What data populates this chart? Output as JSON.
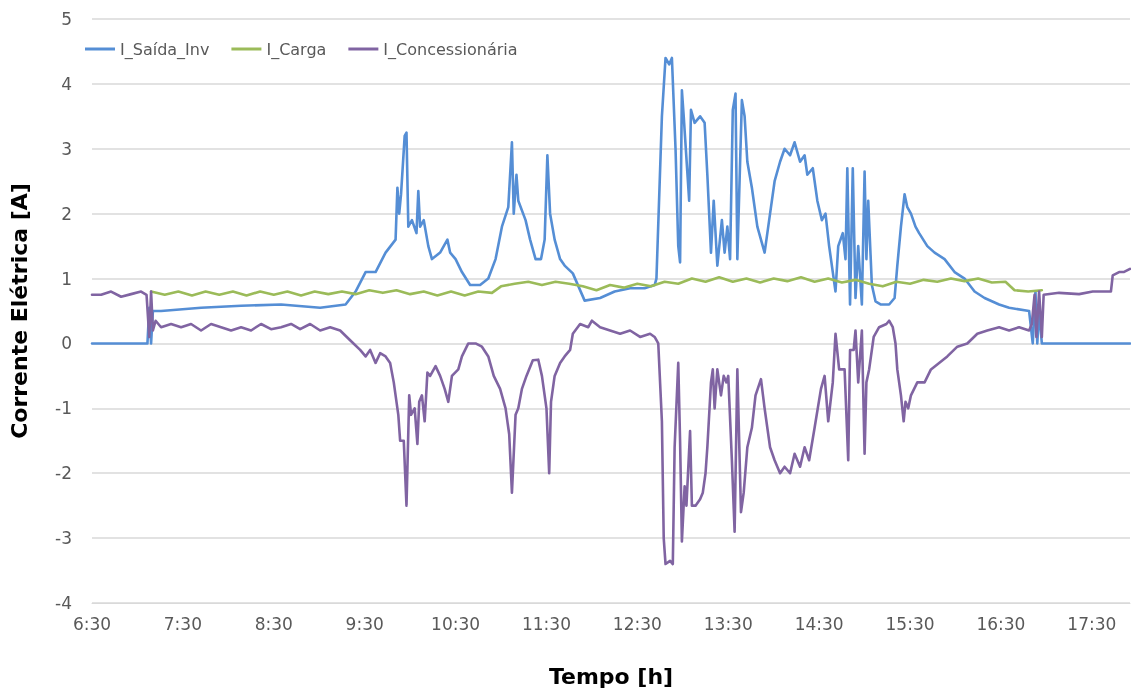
{
  "chart_data": {
    "type": "line",
    "xlabel": "Tempo [h]",
    "ylabel": "Corrente Elétrica [A]",
    "xlim": [
      6.5,
      17.92
    ],
    "ylim": [
      -4,
      5
    ],
    "xticks": [
      {
        "value": 6.5,
        "label": "6:30"
      },
      {
        "value": 7.5,
        "label": "7:30"
      },
      {
        "value": 8.5,
        "label": "8:30"
      },
      {
        "value": 9.5,
        "label": "9:30"
      },
      {
        "value": 10.5,
        "label": "10:30"
      },
      {
        "value": 11.5,
        "label": "11:30"
      },
      {
        "value": 12.5,
        "label": "12:30"
      },
      {
        "value": 13.5,
        "label": "13:30"
      },
      {
        "value": 14.5,
        "label": "14:30"
      },
      {
        "value": 15.5,
        "label": "15:30"
      },
      {
        "value": 16.5,
        "label": "16:30"
      },
      {
        "value": 17.5,
        "label": "17:30"
      }
    ],
    "yticks": [
      -4,
      -3,
      -2,
      -1,
      0,
      1,
      2,
      3,
      4,
      5
    ],
    "grid": "y",
    "legend": "top left",
    "marker": "none",
    "line_style": "solid",
    "series": [
      {
        "name": "I_Saída_Inv",
        "color": "#558ed5",
        "x": [
          6.5,
          7.1,
          7.11,
          7.13,
          7.15,
          7.17,
          7.26,
          7.7,
          8.14,
          8.58,
          9.01,
          9.29,
          9.4,
          9.51,
          9.62,
          9.73,
          9.84,
          9.86,
          9.88,
          9.9,
          9.94,
          9.96,
          9.98,
          10.02,
          10.07,
          10.09,
          10.11,
          10.15,
          10.2,
          10.24,
          10.33,
          10.41,
          10.44,
          10.5,
          10.57,
          10.66,
          10.77,
          10.86,
          10.94,
          11.01,
          11.08,
          11.12,
          11.14,
          11.17,
          11.19,
          11.27,
          11.32,
          11.38,
          11.44,
          11.48,
          11.51,
          11.54,
          11.59,
          11.65,
          11.7,
          11.79,
          11.92,
          12.09,
          12.25,
          12.42,
          12.58,
          12.69,
          12.71,
          12.77,
          12.81,
          12.85,
          12.88,
          12.92,
          12.95,
          12.97,
          12.99,
          13.01,
          13.07,
          13.09,
          13.13,
          13.19,
          13.24,
          13.27,
          13.31,
          13.34,
          13.38,
          13.43,
          13.46,
          13.49,
          13.52,
          13.55,
          13.58,
          13.6,
          13.65,
          13.68,
          13.71,
          13.76,
          13.82,
          13.87,
          13.9,
          13.96,
          14.01,
          14.07,
          14.12,
          14.18,
          14.23,
          14.29,
          14.34,
          14.37,
          14.43,
          14.48,
          14.53,
          14.57,
          14.61,
          14.65,
          14.68,
          14.71,
          14.76,
          14.79,
          14.81,
          14.84,
          14.87,
          14.9,
          14.93,
          14.97,
          15.0,
          15.02,
          15.04,
          15.08,
          15.12,
          15.18,
          15.27,
          15.33,
          15.36,
          15.4,
          15.44,
          15.47,
          15.51,
          15.56,
          15.6,
          15.69,
          15.77,
          15.88,
          15.99,
          16.1,
          16.21,
          16.32,
          16.48,
          16.59,
          16.81,
          16.85,
          16.88,
          16.9,
          16.92,
          16.95,
          17.92
        ],
        "values": [
          0,
          0,
          0,
          0.55,
          0,
          0.5,
          0.5,
          0.55,
          0.58,
          0.6,
          0.55,
          0.6,
          0.8,
          1.1,
          1.1,
          1.4,
          1.6,
          2.4,
          2.0,
          2.3,
          3.2,
          3.25,
          1.8,
          1.9,
          1.7,
          2.35,
          1.8,
          1.9,
          1.5,
          1.3,
          1.4,
          1.6,
          1.4,
          1.3,
          1.1,
          0.9,
          0.9,
          1.0,
          1.3,
          1.8,
          2.1,
          3.1,
          2.0,
          2.6,
          2.2,
          1.9,
          1.6,
          1.3,
          1.3,
          1.6,
          2.9,
          2.0,
          1.6,
          1.3,
          1.2,
          1.08,
          0.66,
          0.7,
          0.8,
          0.85,
          0.85,
          0.9,
          1.0,
          3.5,
          4.4,
          4.3,
          4.4,
          3.0,
          1.5,
          1.25,
          3.9,
          3.5,
          2.2,
          3.6,
          3.4,
          3.5,
          3.4,
          2.6,
          1.4,
          2.2,
          1.2,
          1.9,
          1.4,
          1.8,
          1.3,
          3.6,
          3.85,
          1.3,
          3.75,
          3.5,
          2.8,
          2.4,
          1.8,
          1.55,
          1.4,
          2.0,
          2.5,
          2.8,
          3.0,
          2.9,
          3.1,
          2.8,
          2.9,
          2.6,
          2.7,
          2.2,
          1.9,
          2.0,
          1.5,
          1.1,
          0.8,
          1.5,
          1.7,
          1.3,
          2.7,
          0.6,
          2.7,
          0.7,
          1.5,
          0.6,
          2.65,
          1.3,
          2.2,
          0.9,
          0.65,
          0.6,
          0.6,
          0.7,
          1.2,
          1.8,
          2.3,
          2.1,
          2.0,
          1.8,
          1.7,
          1.5,
          1.4,
          1.3,
          1.1,
          1.0,
          0.8,
          0.7,
          0.6,
          0.55,
          0.5,
          0,
          0.8,
          0,
          0.5,
          0,
          0
        ]
      },
      {
        "name": "I_Carga",
        "color": "#9bbb59",
        "x": [
          7.15,
          7.3,
          7.45,
          7.6,
          7.75,
          7.9,
          8.05,
          8.2,
          8.35,
          8.5,
          8.65,
          8.8,
          8.95,
          9.1,
          9.25,
          9.4,
          9.55,
          9.7,
          9.85,
          10.0,
          10.15,
          10.3,
          10.45,
          10.6,
          10.75,
          10.9,
          11.0,
          11.15,
          11.3,
          11.45,
          11.6,
          11.75,
          11.9,
          12.05,
          12.2,
          12.35,
          12.5,
          12.65,
          12.8,
          12.95,
          13.1,
          13.25,
          13.4,
          13.55,
          13.7,
          13.85,
          14.0,
          14.15,
          14.3,
          14.45,
          14.6,
          14.75,
          14.9,
          15.05,
          15.2,
          15.35,
          15.5,
          15.65,
          15.8,
          15.95,
          16.1,
          16.25,
          16.4,
          16.55,
          16.65,
          16.8,
          16.95
        ],
        "values": [
          0.8,
          0.75,
          0.8,
          0.74,
          0.8,
          0.75,
          0.8,
          0.74,
          0.8,
          0.75,
          0.8,
          0.74,
          0.8,
          0.76,
          0.8,
          0.76,
          0.82,
          0.78,
          0.82,
          0.76,
          0.8,
          0.74,
          0.8,
          0.74,
          0.8,
          0.78,
          0.88,
          0.92,
          0.95,
          0.9,
          0.95,
          0.92,
          0.88,
          0.82,
          0.9,
          0.86,
          0.92,
          0.88,
          0.95,
          0.92,
          1.0,
          0.95,
          1.02,
          0.95,
          1.0,
          0.94,
          1.0,
          0.96,
          1.02,
          0.95,
          1.0,
          0.94,
          0.98,
          0.92,
          0.88,
          0.95,
          0.92,
          0.98,
          0.95,
          1.0,
          0.96,
          1.0,
          0.94,
          0.95,
          0.82,
          0.8,
          0.82
        ]
      },
      {
        "name": "I_Concessionária",
        "color": "#8064a2",
        "x": [
          6.5,
          6.6,
          6.71,
          6.82,
          6.93,
          7.04,
          7.1,
          7.13,
          7.15,
          7.17,
          7.2,
          7.26,
          7.37,
          7.48,
          7.59,
          7.7,
          7.81,
          7.92,
          8.03,
          8.14,
          8.25,
          8.36,
          8.47,
          8.58,
          8.69,
          8.79,
          8.9,
          9.01,
          9.12,
          9.23,
          9.34,
          9.45,
          9.51,
          9.56,
          9.62,
          9.67,
          9.73,
          9.78,
          9.82,
          9.87,
          9.89,
          9.93,
          9.96,
          9.99,
          10.01,
          10.05,
          10.08,
          10.1,
          10.13,
          10.16,
          10.19,
          10.22,
          10.28,
          10.33,
          10.38,
          10.42,
          10.46,
          10.53,
          10.57,
          10.64,
          10.72,
          10.79,
          10.86,
          10.92,
          10.99,
          11.05,
          11.09,
          11.12,
          11.16,
          11.19,
          11.23,
          11.28,
          11.35,
          11.41,
          11.45,
          11.5,
          11.53,
          11.55,
          11.59,
          11.65,
          11.7,
          11.76,
          11.79,
          11.87,
          11.96,
          12.0,
          12.09,
          12.2,
          12.31,
          12.42,
          12.53,
          12.64,
          12.69,
          12.73,
          12.77,
          12.79,
          12.81,
          12.86,
          12.89,
          12.91,
          12.95,
          12.97,
          12.99,
          13.02,
          13.04,
          13.08,
          13.1,
          13.14,
          13.19,
          13.22,
          13.25,
          13.27,
          13.31,
          13.33,
          13.35,
          13.38,
          13.42,
          13.45,
          13.48,
          13.5,
          13.54,
          13.57,
          13.6,
          13.64,
          13.67,
          13.71,
          13.76,
          13.8,
          13.86,
          13.9,
          13.96,
          14.01,
          14.07,
          14.12,
          14.18,
          14.23,
          14.29,
          14.34,
          14.39,
          14.45,
          14.52,
          14.56,
          14.6,
          14.65,
          14.68,
          14.72,
          14.78,
          14.82,
          14.84,
          14.88,
          14.9,
          14.93,
          14.97,
          15.0,
          15.02,
          15.05,
          15.1,
          15.16,
          15.24,
          15.27,
          15.31,
          15.34,
          15.36,
          15.4,
          15.43,
          15.45,
          15.48,
          15.51,
          15.58,
          15.66,
          15.73,
          15.82,
          15.91,
          16.02,
          16.13,
          16.24,
          16.35,
          16.48,
          16.59,
          16.7,
          16.81,
          16.84,
          16.87,
          16.89,
          16.92,
          16.95,
          16.97,
          17.14,
          17.36,
          17.51,
          17.71,
          17.73,
          17.8,
          17.85,
          17.92
        ],
        "values": [
          0.75,
          0.75,
          0.8,
          0.72,
          0.76,
          0.8,
          0.75,
          0.1,
          0.8,
          0.2,
          0.35,
          0.25,
          0.3,
          0.25,
          0.3,
          0.2,
          0.3,
          0.25,
          0.2,
          0.25,
          0.2,
          0.3,
          0.22,
          0.25,
          0.3,
          0.22,
          0.3,
          0.2,
          0.25,
          0.2,
          0.05,
          -0.1,
          -0.2,
          -0.1,
          -0.3,
          -0.15,
          -0.2,
          -0.3,
          -0.6,
          -1.1,
          -1.5,
          -1.5,
          -2.5,
          -0.8,
          -1.1,
          -1.0,
          -1.55,
          -0.9,
          -0.8,
          -1.2,
          -0.45,
          -0.5,
          -0.35,
          -0.5,
          -0.7,
          -0.9,
          -0.5,
          -0.4,
          -0.2,
          0.0,
          0.0,
          -0.05,
          -0.2,
          -0.5,
          -0.7,
          -1.0,
          -1.4,
          -2.3,
          -1.1,
          -1.0,
          -0.7,
          -0.5,
          -0.26,
          -0.25,
          -0.5,
          -1.0,
          -2.0,
          -0.9,
          -0.5,
          -0.3,
          -0.2,
          -0.1,
          0.15,
          0.3,
          0.25,
          0.35,
          0.25,
          0.2,
          0.15,
          0.2,
          0.1,
          0.15,
          0.1,
          0.0,
          -1.2,
          -3.0,
          -3.4,
          -3.35,
          -3.4,
          -1.6,
          -0.3,
          -1.5,
          -3.05,
          -2.2,
          -2.5,
          -1.35,
          -2.5,
          -2.5,
          -2.4,
          -2.3,
          -2.0,
          -1.6,
          -0.6,
          -0.4,
          -1.0,
          -0.4,
          -0.8,
          -0.5,
          -0.6,
          -0.5,
          -1.8,
          -2.9,
          -0.4,
          -2.6,
          -2.3,
          -1.6,
          -1.3,
          -0.8,
          -0.55,
          -1.0,
          -1.6,
          -1.8,
          -2.0,
          -1.9,
          -2.0,
          -1.7,
          -1.9,
          -1.6,
          -1.8,
          -1.3,
          -0.7,
          -0.5,
          -1.2,
          -0.6,
          0.15,
          -0.4,
          -0.4,
          -1.8,
          -0.1,
          -0.1,
          0.2,
          -0.6,
          0.2,
          -1.7,
          -0.6,
          -0.4,
          0.1,
          0.25,
          0.3,
          0.35,
          0.25,
          0.0,
          -0.4,
          -0.8,
          -1.2,
          -0.9,
          -1.0,
          -0.8,
          -0.6,
          -0.6,
          -0.4,
          -0.3,
          -0.2,
          -0.05,
          0.0,
          0.15,
          0.2,
          0.25,
          0.2,
          0.25,
          0.2,
          0.3,
          0.75,
          0.1,
          0.8,
          0.1,
          0.75,
          0.78,
          0.76,
          0.8,
          0.8,
          1.05,
          1.1,
          1.1,
          1.15
        ]
      }
    ]
  }
}
